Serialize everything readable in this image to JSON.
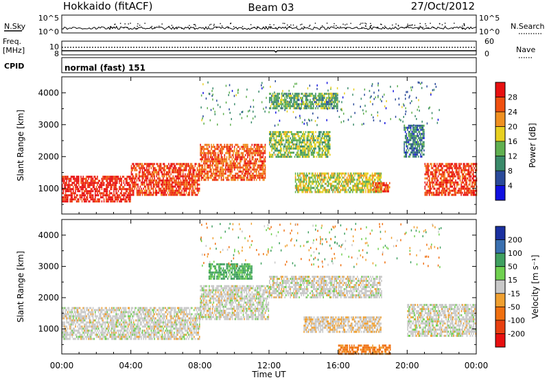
{
  "header": {
    "title": "Hokkaido (fitACF)",
    "beam": "Beam 03",
    "date": "27/Oct/2012"
  },
  "top_panels": {
    "nsky_label": "N.Sky",
    "nsky_ticks": [
      "10^5",
      "10^0"
    ],
    "nsearch_label": "N.Search",
    "freq_label_1": "Freq.",
    "freq_label_2": "[MHz]",
    "freq_ticks": [
      "10",
      "8"
    ],
    "nave_label": "Nave",
    "nave_ticks": [
      "60",
      "0"
    ],
    "cpid_label": "CPID",
    "cpid_value": "normal (fast) 151"
  },
  "axes": {
    "ylabel": "Slant Range [km]",
    "y_ticks": [
      "1000",
      "2000",
      "3000",
      "4000"
    ],
    "x_ticks": [
      "00:00",
      "04:00",
      "08:00",
      "12:00",
      "16:00",
      "20:00",
      "00:00"
    ],
    "xlabel": "Time UT"
  },
  "power_colorbar": {
    "label": "Power [dB]",
    "ticks": [
      "4",
      "8",
      "12",
      "16",
      "20",
      "24",
      "28"
    ],
    "colors": [
      "#1010e0",
      "#2a4a9a",
      "#3a8a6a",
      "#60b050",
      "#e8d020",
      "#f09020",
      "#f05010",
      "#e81010"
    ]
  },
  "velocity_colorbar": {
    "label": "Velocity [m s⁻¹]",
    "ticks": [
      "200",
      "100",
      "50",
      "15",
      "-15",
      "-50",
      "-100",
      "-200"
    ],
    "colors": [
      "#1a30a0",
      "#3a70b0",
      "#40a060",
      "#70d050",
      "#c8c8c8",
      "#f0a030",
      "#f07010",
      "#e84010",
      "#e81010"
    ]
  },
  "chart_data": [
    {
      "type": "heatmap",
      "title": "Power [dB]",
      "xlabel": "Time UT",
      "ylabel": "Slant Range [km]",
      "xlim": [
        0,
        24
      ],
      "ylim": [
        200,
        4500
      ],
      "clim": [
        0,
        30
      ],
      "regions": [
        {
          "t0": 0.0,
          "t1": 4.0,
          "r0": 600,
          "r1": 1400,
          "power": 28
        },
        {
          "t0": 4.0,
          "t1": 8.0,
          "r0": 800,
          "r1": 1800,
          "power": 26
        },
        {
          "t0": 8.0,
          "t1": 11.8,
          "r0": 1300,
          "r1": 2400,
          "power": 24
        },
        {
          "t0": 12.0,
          "t1": 15.5,
          "r0": 2000,
          "r1": 2800,
          "power": 14
        },
        {
          "t0": 13.5,
          "t1": 18.5,
          "r0": 900,
          "r1": 1500,
          "power": 16
        },
        {
          "t0": 18.0,
          "t1": 19.0,
          "r0": 900,
          "r1": 1200,
          "power": 24
        },
        {
          "t0": 19.8,
          "t1": 21.0,
          "r0": 2000,
          "r1": 3000,
          "power": 8
        },
        {
          "t0": 21.0,
          "t1": 24.0,
          "r0": 800,
          "r1": 1800,
          "power": 26
        },
        {
          "t0": 12.0,
          "t1": 16.0,
          "r0": 3500,
          "r1": 4000,
          "power": 12
        }
      ]
    },
    {
      "type": "heatmap",
      "title": "Velocity [m s-1]",
      "xlabel": "Time UT",
      "ylabel": "Slant Range [km]",
      "xlim": [
        0,
        24
      ],
      "ylim": [
        200,
        4500
      ],
      "clim": [
        -200,
        200
      ],
      "regions": [
        {
          "t0": 0.0,
          "t1": 8.0,
          "r0": 700,
          "r1": 1700,
          "velocity": 0
        },
        {
          "t0": 8.0,
          "t1": 12.0,
          "r0": 1300,
          "r1": 2400,
          "velocity": 0
        },
        {
          "t0": 12.0,
          "t1": 18.5,
          "r0": 2000,
          "r1": 2700,
          "velocity": 0
        },
        {
          "t0": 14.0,
          "t1": 18.5,
          "r0": 900,
          "r1": 1400,
          "velocity": -10
        },
        {
          "t0": 20.0,
          "t1": 24.0,
          "r0": 800,
          "r1": 1800,
          "velocity": 0
        },
        {
          "t0": 8.5,
          "t1": 11.0,
          "r0": 2600,
          "r1": 3100,
          "velocity": 60
        },
        {
          "t0": 16.0,
          "t1": 19.0,
          "r0": 200,
          "r1": 500,
          "velocity": -60
        }
      ]
    }
  ]
}
